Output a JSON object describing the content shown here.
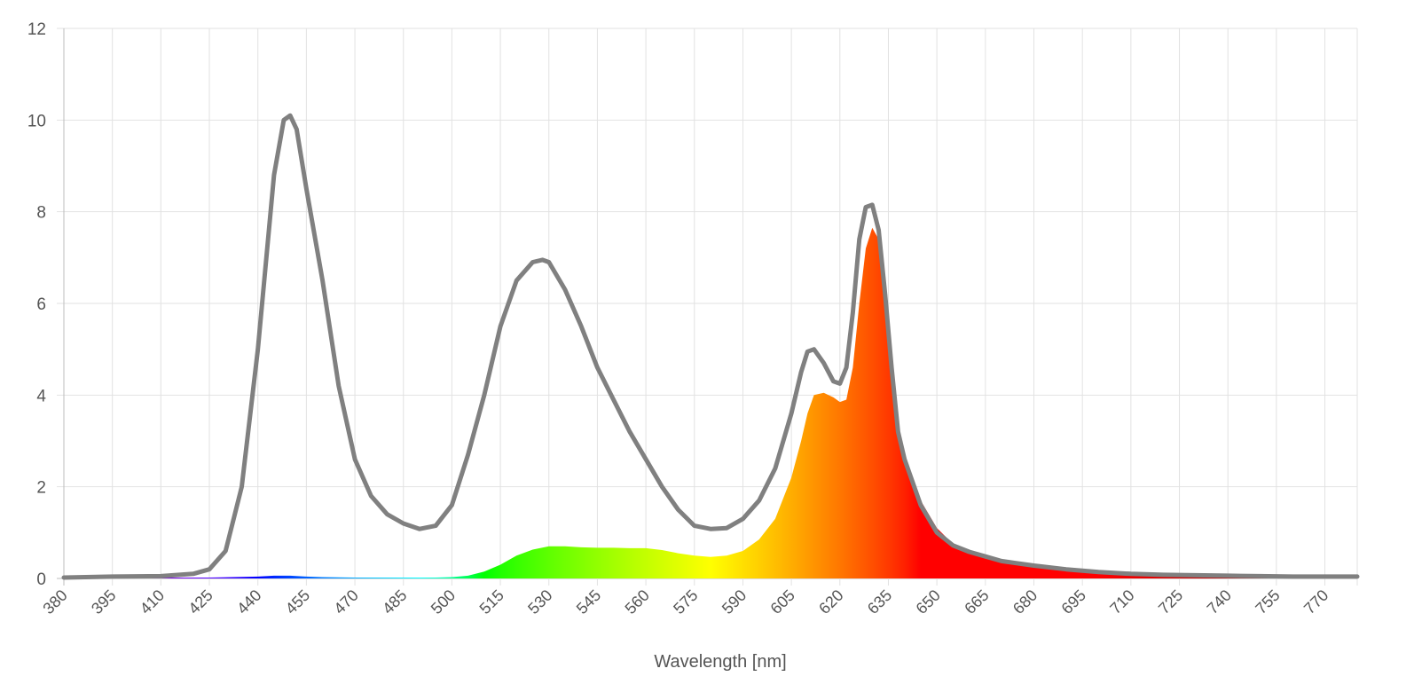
{
  "chart_data": {
    "type": "area",
    "xlabel": "Wavelength [nm]",
    "ylabel": "",
    "xlim": [
      380,
      780
    ],
    "ylim": [
      0,
      12
    ],
    "grid": true,
    "x_ticks": [
      380,
      395,
      410,
      425,
      440,
      455,
      470,
      485,
      500,
      515,
      530,
      545,
      560,
      575,
      590,
      605,
      620,
      635,
      650,
      665,
      680,
      695,
      710,
      725,
      740,
      755,
      770
    ],
    "y_ticks": [
      0,
      2,
      4,
      6,
      8,
      10,
      12
    ],
    "x_tick_labels": [
      "380",
      "395",
      "410",
      "425",
      "440",
      "455",
      "470",
      "485",
      "500",
      "515",
      "530",
      "545",
      "560",
      "575",
      "590",
      "605",
      "620",
      "635",
      "650",
      "665",
      "680",
      "695",
      "710",
      "725",
      "740",
      "755",
      "770"
    ],
    "y_tick_labels": [
      "0",
      "2",
      "4",
      "6",
      "8",
      "10",
      "12"
    ],
    "series": [
      {
        "style": "line",
        "color": "#808080",
        "x": [
          380,
          395,
          410,
          420,
          425,
          430,
          435,
          440,
          445,
          448,
          450,
          452,
          455,
          460,
          465,
          470,
          475,
          480,
          485,
          490,
          495,
          500,
          505,
          510,
          515,
          520,
          525,
          528,
          530,
          535,
          540,
          545,
          550,
          555,
          560,
          565,
          570,
          575,
          580,
          585,
          590,
          595,
          600,
          605,
          608,
          610,
          612,
          615,
          618,
          620,
          622,
          624,
          626,
          628,
          630,
          632,
          634,
          636,
          638,
          640,
          642,
          645,
          650,
          655,
          660,
          665,
          670,
          680,
          690,
          700,
          710,
          720,
          730,
          740,
          750,
          760,
          770,
          780
        ],
        "y": [
          0.02,
          0.04,
          0.05,
          0.1,
          0.2,
          0.6,
          2.0,
          5.0,
          8.8,
          10.0,
          10.1,
          9.8,
          8.5,
          6.5,
          4.2,
          2.6,
          1.8,
          1.4,
          1.2,
          1.08,
          1.15,
          1.6,
          2.7,
          4.0,
          5.5,
          6.5,
          6.9,
          6.95,
          6.9,
          6.3,
          5.5,
          4.6,
          3.9,
          3.2,
          2.6,
          2.0,
          1.5,
          1.15,
          1.08,
          1.1,
          1.3,
          1.7,
          2.4,
          3.6,
          4.5,
          4.95,
          5.0,
          4.7,
          4.3,
          4.25,
          4.6,
          5.8,
          7.4,
          8.1,
          8.15,
          7.6,
          6.2,
          4.6,
          3.2,
          2.6,
          2.2,
          1.6,
          1.0,
          0.72,
          0.58,
          0.48,
          0.38,
          0.28,
          0.2,
          0.14,
          0.1,
          0.08,
          0.07,
          0.06,
          0.05,
          0.04,
          0.04,
          0.04
        ]
      },
      {
        "style": "spectrum-area",
        "x": [
          380,
          395,
          410,
          425,
          440,
          445,
          450,
          455,
          460,
          470,
          485,
          495,
          500,
          505,
          510,
          515,
          520,
          525,
          530,
          535,
          540,
          545,
          550,
          555,
          560,
          565,
          570,
          575,
          580,
          585,
          590,
          595,
          600,
          605,
          608,
          610,
          612,
          615,
          618,
          620,
          622,
          624,
          626,
          628,
          630,
          632,
          634,
          636,
          638,
          640,
          642,
          645,
          650,
          655,
          660,
          665,
          670,
          680,
          690,
          700,
          710,
          720,
          730,
          740,
          750,
          760,
          770,
          780
        ],
        "y": [
          0.02,
          0.03,
          0.02,
          0.02,
          0.04,
          0.06,
          0.06,
          0.04,
          0.03,
          0.02,
          0.02,
          0.02,
          0.03,
          0.06,
          0.15,
          0.3,
          0.5,
          0.63,
          0.7,
          0.7,
          0.68,
          0.67,
          0.67,
          0.66,
          0.66,
          0.62,
          0.55,
          0.5,
          0.47,
          0.5,
          0.6,
          0.85,
          1.3,
          2.2,
          3.0,
          3.6,
          4.0,
          4.05,
          3.95,
          3.85,
          3.9,
          4.6,
          6.0,
          7.2,
          7.65,
          7.4,
          6.4,
          4.8,
          3.4,
          2.6,
          2.3,
          1.7,
          1.1,
          0.75,
          0.6,
          0.5,
          0.42,
          0.3,
          0.22,
          0.16,
          0.12,
          0.09,
          0.07,
          0.06,
          0.05,
          0.05,
          0.05,
          0.05
        ]
      }
    ]
  }
}
